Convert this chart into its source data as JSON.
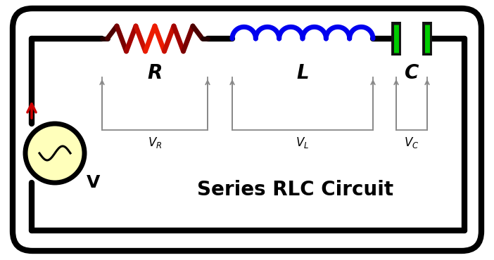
{
  "title": "Series RLC Circuit",
  "title_fontsize": 20,
  "bg_color": "#ffffff",
  "border_color": "#000000",
  "border_lw": 6,
  "wire_color": "#000000",
  "wire_lw": 6,
  "resistor_colors": [
    "#1a0000",
    "#cc0000",
    "#ff0000",
    "#cc0000",
    "#1a0000"
  ],
  "inductor_color": "#0000ee",
  "capacitor_plate_color": "#111111",
  "capacitor_glow_color": "#00cc00",
  "voltage_source_fill": "#ffffbb",
  "arrow_color": "#cc0000",
  "meas_line_color": "#888888",
  "meas_lw": 1.3,
  "label_R": "R",
  "label_L": "L",
  "label_C": "C",
  "label_V": "V"
}
